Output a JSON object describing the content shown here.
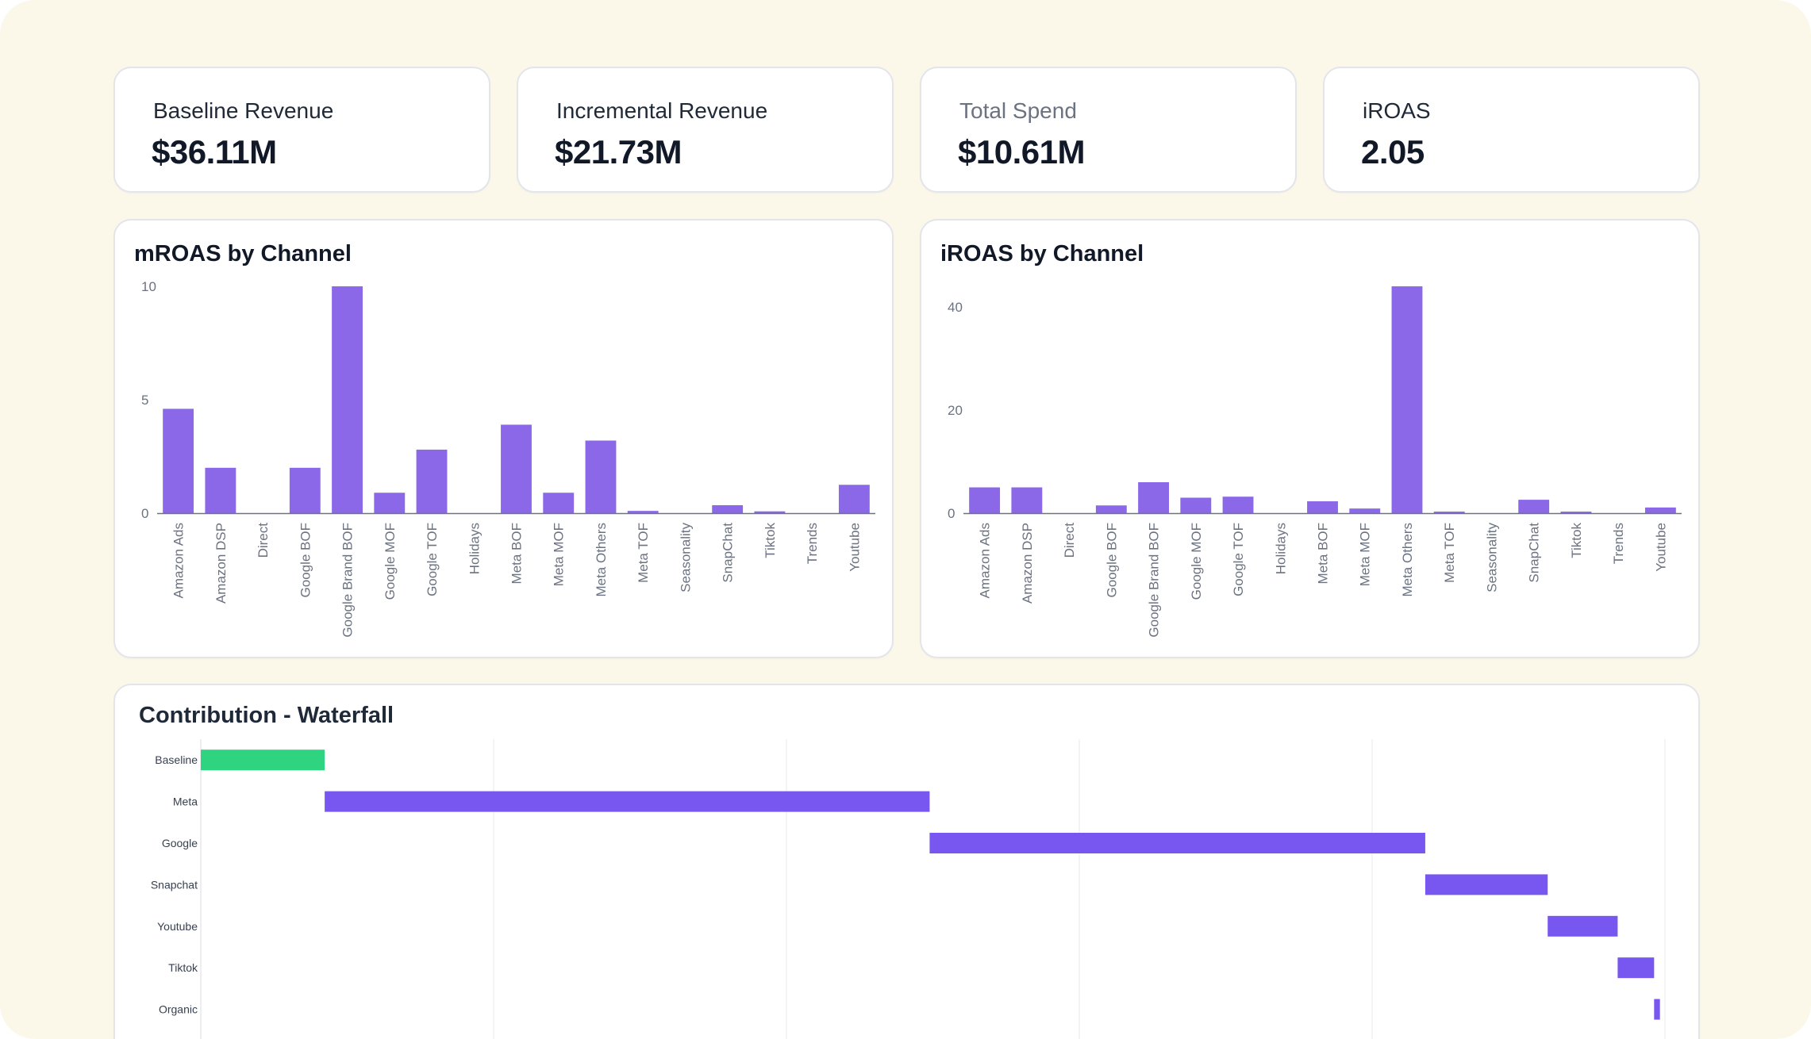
{
  "kpis": [
    {
      "label": "Baseline Revenue",
      "value": "$36.11M"
    },
    {
      "label": "Incremental Revenue",
      "value": "$21.73M"
    },
    {
      "label": "Total Spend",
      "value": "$10.61M"
    },
    {
      "label": "iROAS",
      "value": "2.05"
    }
  ],
  "colors": {
    "bar": "#8b68e8",
    "waterfall": "#7856f0",
    "baseline": "#2ed47f",
    "axis": "#6b7280"
  },
  "chart_data": [
    {
      "type": "bar",
      "title": "mROAS by Channel",
      "categories": [
        "Amazon Ads",
        "Amazon DSP",
        "Direct",
        "Google BOF",
        "Google Brand BOF",
        "Google MOF",
        "Google TOF",
        "Holidays",
        "Meta BOF",
        "Meta MOF",
        "Meta Others",
        "Meta TOF",
        "Seasonality",
        "SnapChat",
        "Tiktok",
        "Trends",
        "Youtube"
      ],
      "values": [
        4.6,
        2.0,
        0,
        2.0,
        10.0,
        0.9,
        2.8,
        0,
        3.9,
        0.9,
        3.2,
        0.1,
        0,
        0.35,
        0.08,
        0,
        1.25
      ],
      "ylim": [
        0,
        10
      ],
      "yticks": [
        0,
        5,
        10
      ],
      "xlabel": "",
      "ylabel": ""
    },
    {
      "type": "bar",
      "title": "iROAS by Channel",
      "categories": [
        "Amazon Ads",
        "Amazon DSP",
        "Direct",
        "Google BOF",
        "Google Brand BOF",
        "Google MOF",
        "Google TOF",
        "Holidays",
        "Meta BOF",
        "Meta MOF",
        "Meta Others",
        "Meta TOF",
        "Seasonality",
        "SnapChat",
        "Tiktok",
        "Trends",
        "Youtube"
      ],
      "values": [
        5,
        5,
        0,
        1.5,
        6,
        3,
        3.2,
        0,
        2.3,
        0.9,
        44,
        0.3,
        0,
        2.6,
        0.3,
        0,
        1.1
      ],
      "ylim": [
        0,
        44
      ],
      "yticks": [
        0,
        20,
        40
      ],
      "xlabel": "",
      "ylabel": ""
    },
    {
      "type": "waterfall",
      "title": "Contribution - Waterfall",
      "orientation": "horizontal",
      "categories": [
        "Baseline",
        "Meta",
        "Google",
        "Snapchat",
        "Youtube",
        "Tiktok",
        "Organic"
      ],
      "start": [
        0,
        0.85,
        5.0,
        8.4,
        9.24,
        9.72,
        9.97
      ],
      "values": [
        0.85,
        4.15,
        3.4,
        0.84,
        0.48,
        0.25,
        0.04
      ],
      "xlim": [
        0,
        10.05
      ],
      "grid": true
    }
  ]
}
